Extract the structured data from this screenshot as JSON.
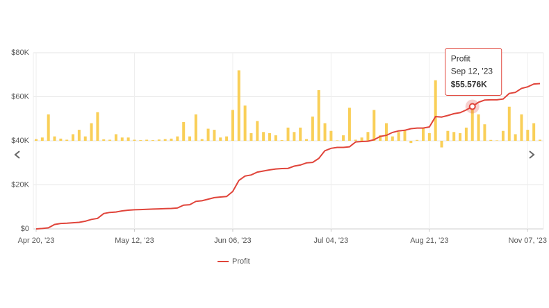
{
  "chart_data": {
    "type": "combo",
    "categories": [
      "Apr 20, '23",
      null,
      null,
      null,
      null,
      null,
      null,
      null,
      null,
      null,
      null,
      null,
      null,
      null,
      null,
      null,
      "May 12, '23",
      null,
      null,
      null,
      null,
      null,
      null,
      null,
      null,
      null,
      null,
      null,
      null,
      null,
      null,
      null,
      "Jun 06, '23",
      null,
      null,
      null,
      null,
      null,
      null,
      null,
      null,
      null,
      null,
      null,
      null,
      null,
      null,
      null,
      "Jul 04, '23",
      null,
      null,
      null,
      null,
      null,
      null,
      null,
      null,
      null,
      null,
      null,
      null,
      null,
      null,
      null,
      "Aug 21, '23",
      null,
      null,
      null,
      null,
      null,
      null,
      null,
      null,
      null,
      null,
      null,
      null,
      null,
      null,
      null,
      "Nov 07, '23",
      null,
      null
    ],
    "series": [
      {
        "type": "bar",
        "axis": "y2",
        "color": "#f9cf58",
        "values": [
          120,
          225,
          1800,
          300,
          150,
          75,
          450,
          750,
          300,
          1200,
          1950,
          105,
          75,
          450,
          225,
          225,
          75,
          45,
          75,
          45,
          90,
          120,
          150,
          300,
          1275,
          300,
          1800,
          120,
          825,
          750,
          225,
          300,
          2100,
          4800,
          2400,
          525,
          1350,
          600,
          525,
          375,
          45,
          900,
          600,
          900,
          120,
          1650,
          3450,
          1200,
          675,
          30,
          375,
          2250,
          75,
          225,
          600,
          2100,
          375,
          1200,
          300,
          600,
          750,
          -150,
          60,
          900,
          525,
          4125,
          -450,
          675,
          600,
          525,
          900,
          2250,
          1800,
          1125,
          60,
          30,
          675,
          2325,
          450,
          1800,
          750,
          1200,
          75
        ]
      },
      {
        "type": "line",
        "name": "Profit",
        "color": "#e0443a",
        "values": [
          0,
          200,
          500,
          2000,
          2500,
          2600,
          2800,
          3000,
          3500,
          4300,
          4800,
          7000,
          7500,
          7700,
          8200,
          8500,
          8700,
          8800,
          8900,
          9000,
          9100,
          9200,
          9300,
          9500,
          10800,
          11000,
          12500,
          12800,
          13500,
          14200,
          14500,
          14700,
          17000,
          22000,
          24000,
          24500,
          25800,
          26300,
          26800,
          27200,
          27400,
          27500,
          28500,
          29000,
          30000,
          30200,
          32000,
          35500,
          36600,
          37000,
          37000,
          37300,
          39500,
          39700,
          39800,
          40500,
          42000,
          42500,
          43800,
          44500,
          44800,
          45500,
          45800,
          45800,
          46300,
          51000,
          50800,
          51500,
          52300,
          52800,
          54000,
          55576,
          57500,
          58500,
          58600,
          58600,
          59000,
          61500,
          62000,
          63800,
          64500,
          65800,
          66000
        ]
      }
    ],
    "ylim": [
      0,
      80000
    ],
    "yticks": [
      {
        "value": 0,
        "label": "$0"
      },
      {
        "value": 20000,
        "label": "$20K"
      },
      {
        "value": 40000,
        "label": "$40K"
      },
      {
        "value": 60000,
        "label": "$60K"
      },
      {
        "value": 80000,
        "label": "$80K"
      }
    ],
    "y2lim": [
      -6000,
      6000
    ],
    "grid": true,
    "tooltip": {
      "title": "Profit",
      "date": "Sep 12, '23",
      "value": 55576,
      "label": "$55.576K"
    }
  }
}
